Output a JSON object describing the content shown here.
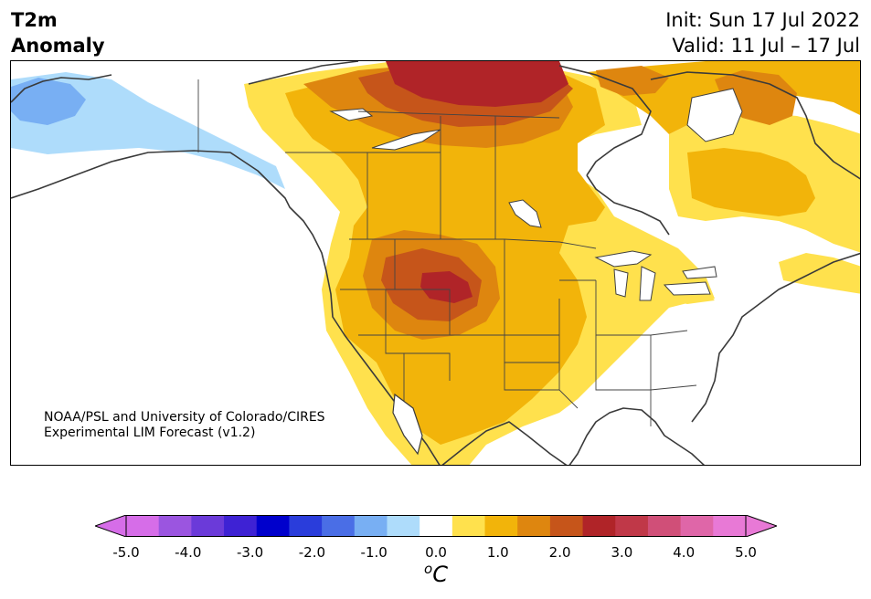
{
  "title": {
    "variable": "T2m",
    "quantity": "Anomaly",
    "init": "Init: Sun 17 Jul 2022",
    "valid": "Valid: 11 Jul – 17 Jul"
  },
  "credit": {
    "line1": "NOAA/PSL and University of Colorado/CIRES",
    "line2": "Experimental LIM Forecast (v1.2)"
  },
  "colorbar": {
    "bins": [
      -5.0,
      -4.5,
      -4.0,
      -3.5,
      -3.0,
      -2.5,
      -2.0,
      -1.5,
      -1.0,
      -0.5,
      0.5,
      1.0,
      1.5,
      2.0,
      2.5,
      3.0,
      3.5,
      4.0,
      4.5,
      5.0
    ],
    "colors": [
      "#d66de8",
      "#9b55e0",
      "#6b3ad9",
      "#3e22d4",
      "#0000cc",
      "#2a3ddb",
      "#4a6ee6",
      "#78aff3",
      "#aedcfb",
      "#ffffff",
      "#ffe14d",
      "#f2b40a",
      "#de860f",
      "#c6551a",
      "#b02428",
      "#c03848",
      "#d04f78",
      "#df66a8",
      "#e879d6"
    ],
    "ticks": [
      "-5.0",
      "-4.0",
      "-3.0",
      "-2.0",
      "-1.0",
      "0.0",
      "1.0",
      "2.0",
      "3.0",
      "4.0",
      "5.0"
    ],
    "unit_o": "o",
    "unit_c": "C"
  }
}
